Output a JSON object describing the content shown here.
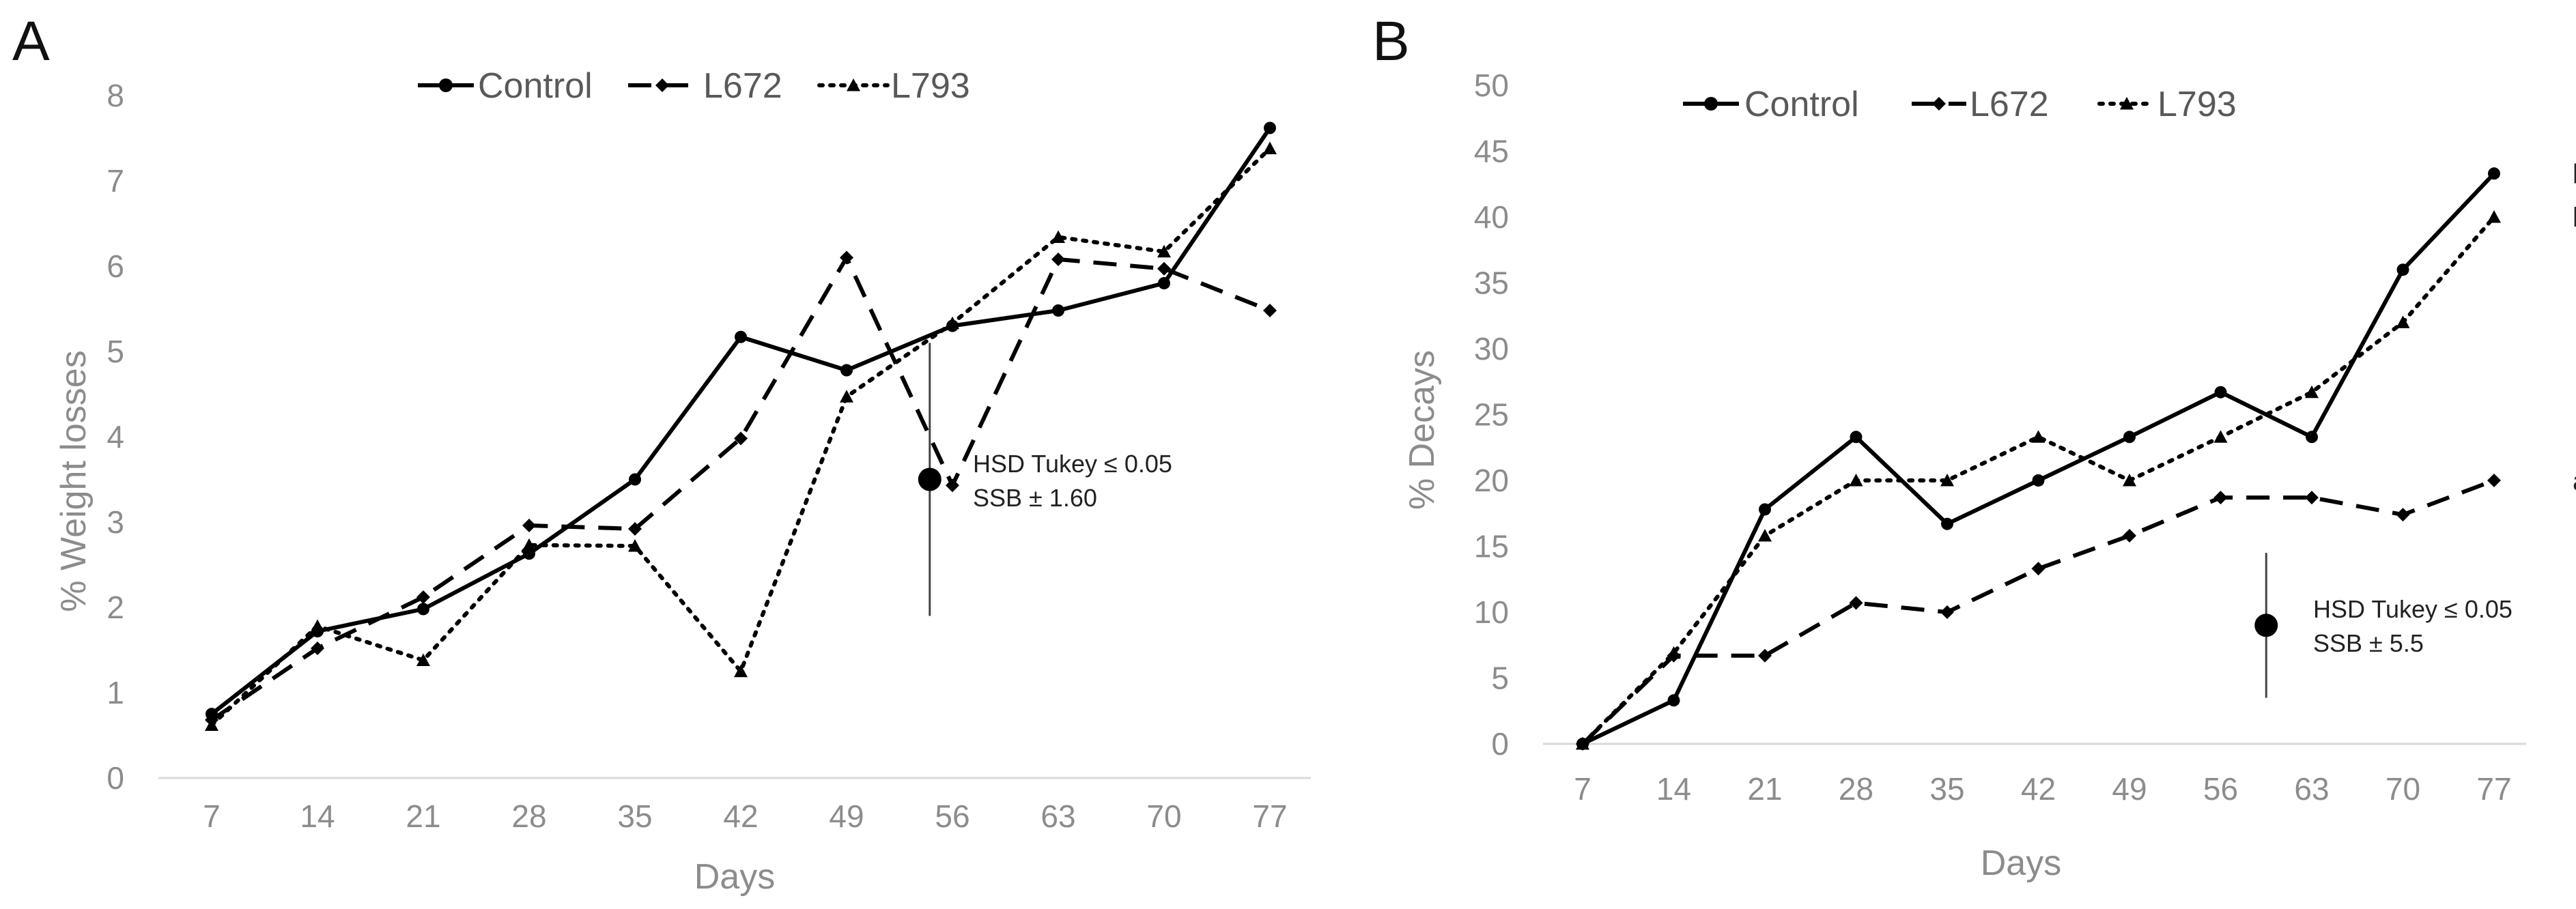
{
  "chart_data": [
    {
      "type": "line",
      "panel": "A",
      "xlabel": "Days",
      "ylabel": "% Weight losses",
      "ylim": [
        0,
        8
      ],
      "ytick_labels": [
        "0",
        "1",
        "2",
        "3",
        "4",
        "5",
        "6",
        "7",
        "8"
      ],
      "categories": [
        "7",
        "14",
        "21",
        "28",
        "35",
        "42",
        "49",
        "56",
        "63",
        "70",
        "77"
      ],
      "legend_position": "top",
      "series": [
        {
          "name": "Control",
          "style": "solid",
          "marker": "circle",
          "values": [
            0.75,
            1.72,
            1.98,
            2.63,
            3.5,
            5.17,
            4.78,
            5.3,
            5.48,
            5.8,
            7.62
          ]
        },
        {
          "name": "L672",
          "style": "dashed",
          "marker": "diamond",
          "values": [
            0.68,
            1.52,
            2.12,
            2.96,
            2.92,
            3.98,
            6.1,
            3.43,
            6.08,
            5.97,
            5.48
          ]
        },
        {
          "name": "L793",
          "style": "dotted",
          "marker": "triangle",
          "values": [
            0.62,
            1.78,
            1.38,
            2.73,
            2.72,
            1.25,
            4.47,
            5.33,
            6.34,
            6.17,
            7.38
          ]
        }
      ],
      "error_bar": {
        "x": 54.5,
        "center": 3.5,
        "half_width": 1.6
      },
      "annotations": [
        "HSD Tukey ≤ 0.05",
        "SSB ± 1.60"
      ]
    },
    {
      "type": "line",
      "panel": "B",
      "xlabel": "Days",
      "ylabel": "% Decays",
      "ylim": [
        0,
        50
      ],
      "ytick_labels": [
        "0",
        "5",
        "10",
        "15",
        "20",
        "25",
        "30",
        "35",
        "40",
        "45",
        "50"
      ],
      "categories": [
        "7",
        "14",
        "21",
        "28",
        "35",
        "42",
        "49",
        "56",
        "63",
        "70",
        "77"
      ],
      "legend_position": "top",
      "series": [
        {
          "name": "Control",
          "style": "solid",
          "marker": "circle",
          "values": [
            0,
            3.3,
            17.8,
            23.3,
            16.7,
            20,
            23.3,
            26.7,
            23.3,
            36,
            43.3
          ],
          "group": "b"
        },
        {
          "name": "L672",
          "style": "dashed",
          "marker": "diamond",
          "values": [
            0,
            6.7,
            6.7,
            10.7,
            10,
            13.3,
            15.8,
            18.7,
            18.7,
            17.4,
            20
          ],
          "group": "a"
        },
        {
          "name": "L793",
          "style": "dotted",
          "marker": "triangle",
          "values": [
            0,
            6.9,
            15.8,
            20,
            20,
            23.3,
            20,
            23.3,
            26.7,
            32,
            40
          ],
          "group": "b"
        }
      ],
      "error_bar": {
        "x": 59.5,
        "center": 9,
        "half_width": 5.5
      },
      "annotations": [
        "HSD Tukey ≤ 0.05",
        "SSB ± 5.5"
      ]
    }
  ]
}
